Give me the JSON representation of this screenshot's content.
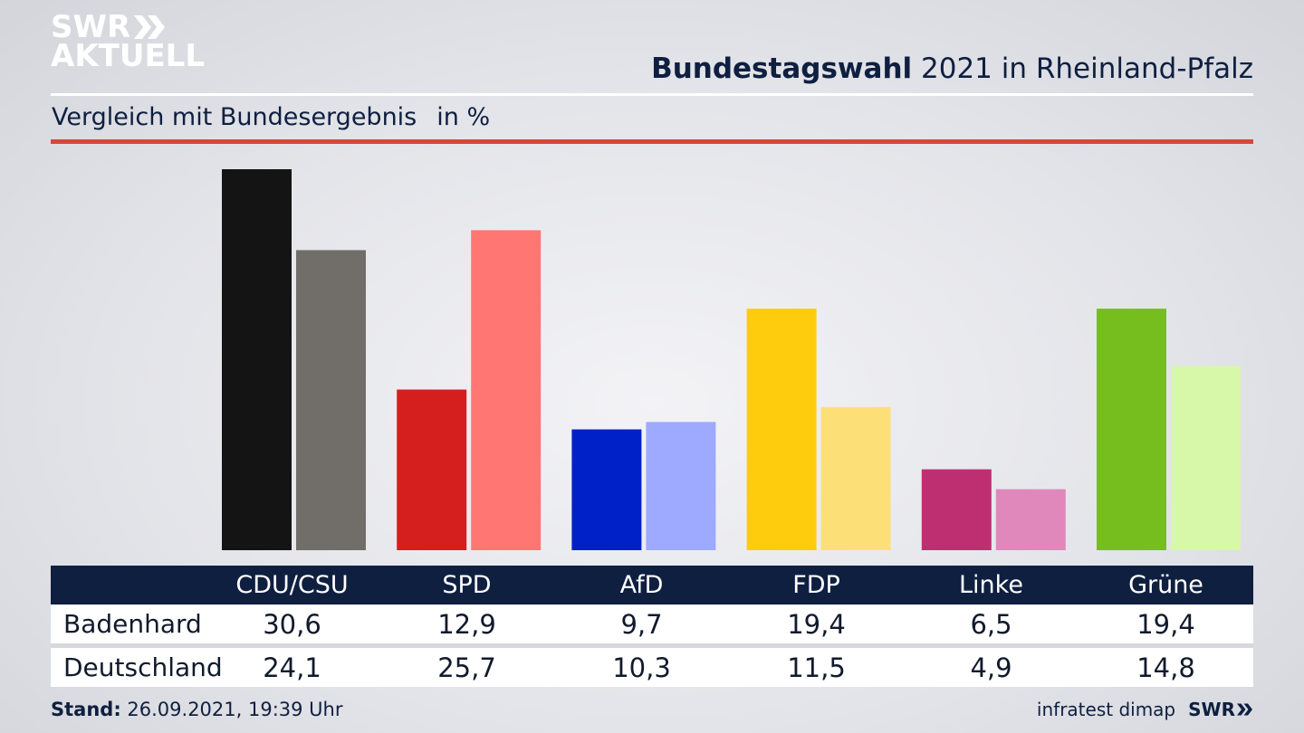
{
  "logo": {
    "line1": "SWR",
    "line2": "AKTUELL"
  },
  "header": {
    "title_bold": "Bundestagswahl",
    "title_rest": " 2021 in Rheinland-Pfalz"
  },
  "subtitle": {
    "text": "Vergleich mit Bundesergebnis",
    "unit": "in %"
  },
  "colors": {
    "background": "#e3e4e9",
    "title": "#0f1f40",
    "accent_line": "#d4483a",
    "table_header": "#0f1f40"
  },
  "chart_data": {
    "type": "bar",
    "categories": [
      "CDU/CSU",
      "SPD",
      "AfD",
      "FDP",
      "Linke",
      "Grüne"
    ],
    "series": [
      {
        "name": "Badenhard",
        "values": [
          30.6,
          12.9,
          9.7,
          19.4,
          6.5,
          19.4
        ],
        "colors": [
          "#141414",
          "#d51e1e",
          "#0020c8",
          "#ffcc0d",
          "#be2f72",
          "#76be1e"
        ]
      },
      {
        "name": "Deutschland",
        "values": [
          24.1,
          25.7,
          10.3,
          11.5,
          4.9,
          14.8
        ],
        "colors": [
          "#716e6a",
          "#ff7672",
          "#9daaff",
          "#fce077",
          "#e088bb",
          "#d7f7a9"
        ]
      }
    ],
    "value_labels": [
      [
        "30,6",
        "12,9",
        "9,7",
        "19,4",
        "6,5",
        "19,4"
      ],
      [
        "24,1",
        "25,7",
        "10,3",
        "11,5",
        "4,9",
        "14,8"
      ]
    ],
    "ylim": [
      0,
      31
    ],
    "grid": false,
    "legend": "table-below"
  },
  "table": {
    "header_first": "",
    "rows": [
      {
        "name": "Badenhard"
      },
      {
        "name": "Deutschland"
      }
    ]
  },
  "footer": {
    "stand_label": "Stand:",
    "stand_value": " 26.09.2021, 19:39 Uhr",
    "source": "infratest dimap",
    "brand": "SWR"
  }
}
